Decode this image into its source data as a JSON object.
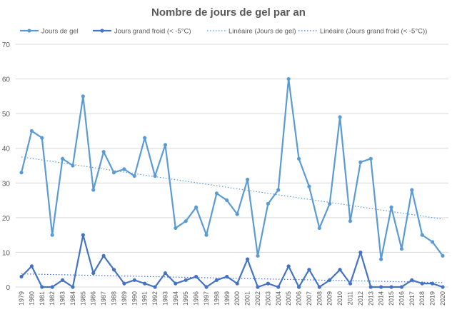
{
  "chart_data": {
    "type": "line",
    "title": "Nombre de jours de gel par an",
    "xlabel": "",
    "ylabel": "",
    "ylim": [
      0,
      70
    ],
    "yticks": [
      0,
      10,
      20,
      30,
      40,
      50,
      60,
      70
    ],
    "grid": true,
    "legend_position": "top",
    "x": [
      "1979",
      "1980",
      "1981",
      "1982",
      "1983",
      "1984",
      "1985",
      "1986",
      "1987",
      "1988",
      "1989",
      "1990",
      "1991",
      "1992",
      "1993",
      "1994",
      "1995",
      "1996",
      "1997",
      "1998",
      "1999",
      "2000",
      "2001",
      "2002",
      "2003",
      "2004",
      "2005",
      "2006",
      "2007",
      "2008",
      "2009",
      "2010",
      "2011",
      "2012",
      "2013",
      "2014",
      "2015",
      "2016",
      "2017",
      "2018",
      "2019",
      "2020"
    ],
    "series": [
      {
        "name": "Jours de gel",
        "color": "#5B9BD5",
        "values": [
          33,
          45,
          43,
          15,
          37,
          35,
          55,
          28,
          39,
          33,
          34,
          32,
          43,
          32,
          41,
          17,
          19,
          23,
          15,
          27,
          25,
          21,
          31,
          9,
          24,
          28,
          60,
          37,
          29,
          17,
          24,
          49,
          19,
          36,
          37,
          8,
          23,
          11,
          28,
          15,
          13,
          9
        ]
      },
      {
        "name": "Jours grand froid (< -5°C)",
        "color": "#4472C4",
        "values": [
          3,
          6,
          0,
          0,
          2,
          0,
          15,
          4,
          9,
          5,
          1,
          2,
          1,
          0,
          4,
          1,
          2,
          3,
          0,
          2,
          3,
          1,
          8,
          0,
          1,
          0,
          6,
          0,
          5,
          0,
          2,
          5,
          1,
          10,
          0,
          0,
          0,
          0,
          2,
          1,
          1,
          0
        ]
      }
    ],
    "trendlines": [
      {
        "name": "Linéaire (Jours de gel)",
        "of": 0,
        "color": "#5B9BD5"
      },
      {
        "name": "Linéaire (Jours grand froid (< -5°C))",
        "of": 1,
        "color": "#4472C4"
      }
    ]
  }
}
